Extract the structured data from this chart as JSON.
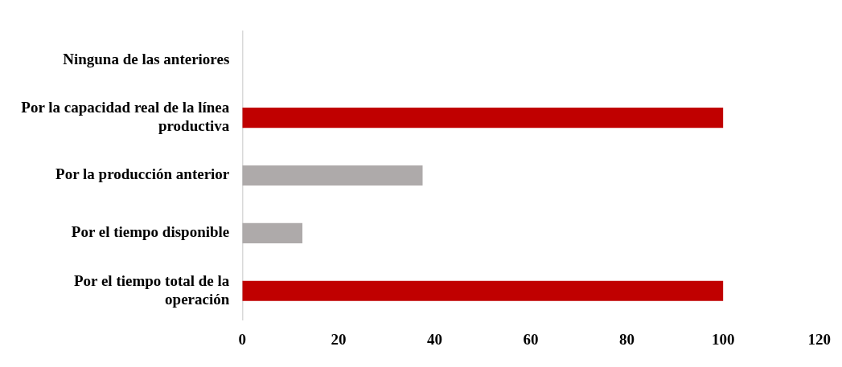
{
  "chart_data": {
    "type": "bar",
    "orientation": "horizontal",
    "categories": [
      "Ninguna de las anteriores",
      "Por la capacidad real de la línea productiva",
      "Por la producción anterior",
      "Por el tiempo disponible",
      "Por el tiempo total de la operación"
    ],
    "values": [
      0,
      100,
      37.5,
      12.5,
      100
    ],
    "colors": [
      "#c00000",
      "#c00000",
      "#aeaaaa",
      "#aeaaaa",
      "#c00000"
    ],
    "xlim": [
      0,
      120
    ],
    "xticks": [
      0,
      20,
      40,
      60,
      80,
      100,
      120
    ],
    "grid": false,
    "legend": false
  }
}
